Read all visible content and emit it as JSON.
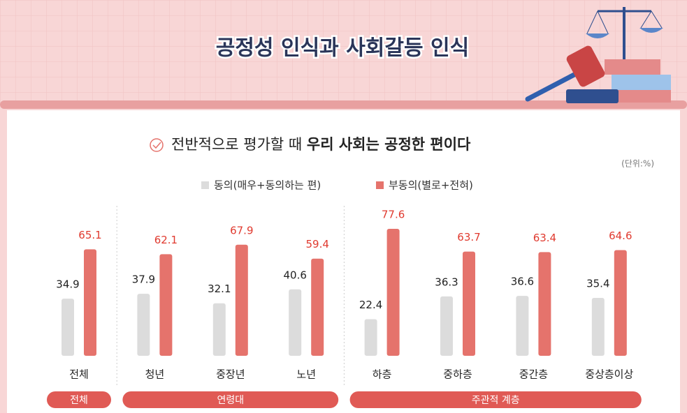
{
  "chart_data": {
    "type": "bar",
    "title": "공정성 인식과 사회갈등 인식",
    "subtitle": [
      "전반적으로 평가할 때 ",
      "우리 사회는 공정한 편이다"
    ],
    "unit": "(단위:%)",
    "categories": [
      "전체",
      "청년",
      "중장년",
      "노년",
      "하층",
      "중하층",
      "중간층",
      "중상층이상"
    ],
    "series": [
      {
        "name": "동의(매우+동의하는 편)",
        "color": "#dcdcdc",
        "values": [
          34.9,
          37.9,
          32.1,
          40.6,
          22.4,
          36.3,
          36.6,
          35.4
        ]
      },
      {
        "name": "부동의(별로+전혀)",
        "color": "#e5736c",
        "values": [
          65.1,
          62.1,
          67.9,
          59.4,
          77.6,
          63.7,
          63.4,
          64.6
        ]
      }
    ],
    "groups": [
      {
        "name": "전체",
        "categories": [
          "전체"
        ]
      },
      {
        "name": "연령대",
        "categories": [
          "청년",
          "중장년",
          "노년"
        ]
      },
      {
        "name": "주관적 계층",
        "categories": [
          "하층",
          "중하층",
          "중간층",
          "중상층이상"
        ]
      }
    ]
  }
}
